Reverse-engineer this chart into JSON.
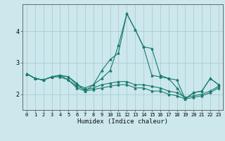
{
  "title": "",
  "xlabel": "Humidex (Indice chaleur)",
  "ylabel": "",
  "background_color": "#cce8ec",
  "grid_color": "#aacdd4",
  "line_color": "#1a7a6e",
  "x_values": [
    0,
    1,
    2,
    3,
    4,
    5,
    6,
    7,
    8,
    9,
    10,
    11,
    12,
    13,
    14,
    15,
    16,
    17,
    18,
    19,
    20,
    21,
    22,
    23
  ],
  "series": [
    [
      2.65,
      2.5,
      2.45,
      2.55,
      2.6,
      2.55,
      2.35,
      2.1,
      2.3,
      2.75,
      3.1,
      3.3,
      4.55,
      4.05,
      3.5,
      3.45,
      2.6,
      2.5,
      2.45,
      1.85,
      2.05,
      2.1,
      2.5,
      2.3
    ],
    [
      2.65,
      2.5,
      2.45,
      2.55,
      2.6,
      2.55,
      2.3,
      2.2,
      2.3,
      2.5,
      2.75,
      3.55,
      4.55,
      4.05,
      3.5,
      2.6,
      2.55,
      2.5,
      2.2,
      1.85,
      2.05,
      2.1,
      2.5,
      2.3
    ],
    [
      2.65,
      2.5,
      2.45,
      2.55,
      2.6,
      2.45,
      2.25,
      2.15,
      2.2,
      2.3,
      2.35,
      2.4,
      2.4,
      2.3,
      2.3,
      2.25,
      2.2,
      2.1,
      2.05,
      1.9,
      1.95,
      2.0,
      2.1,
      2.25
    ],
    [
      2.65,
      2.5,
      2.45,
      2.55,
      2.55,
      2.45,
      2.2,
      2.1,
      2.15,
      2.2,
      2.25,
      2.3,
      2.3,
      2.2,
      2.2,
      2.1,
      2.1,
      2.0,
      1.95,
      1.85,
      1.9,
      1.95,
      2.05,
      2.2
    ]
  ],
  "ylim": [
    1.5,
    4.85
  ],
  "yticks": [
    2,
    3,
    4
  ],
  "xlim": [
    -0.5,
    23.5
  ],
  "figsize": [
    3.2,
    2.0
  ],
  "dpi": 100
}
